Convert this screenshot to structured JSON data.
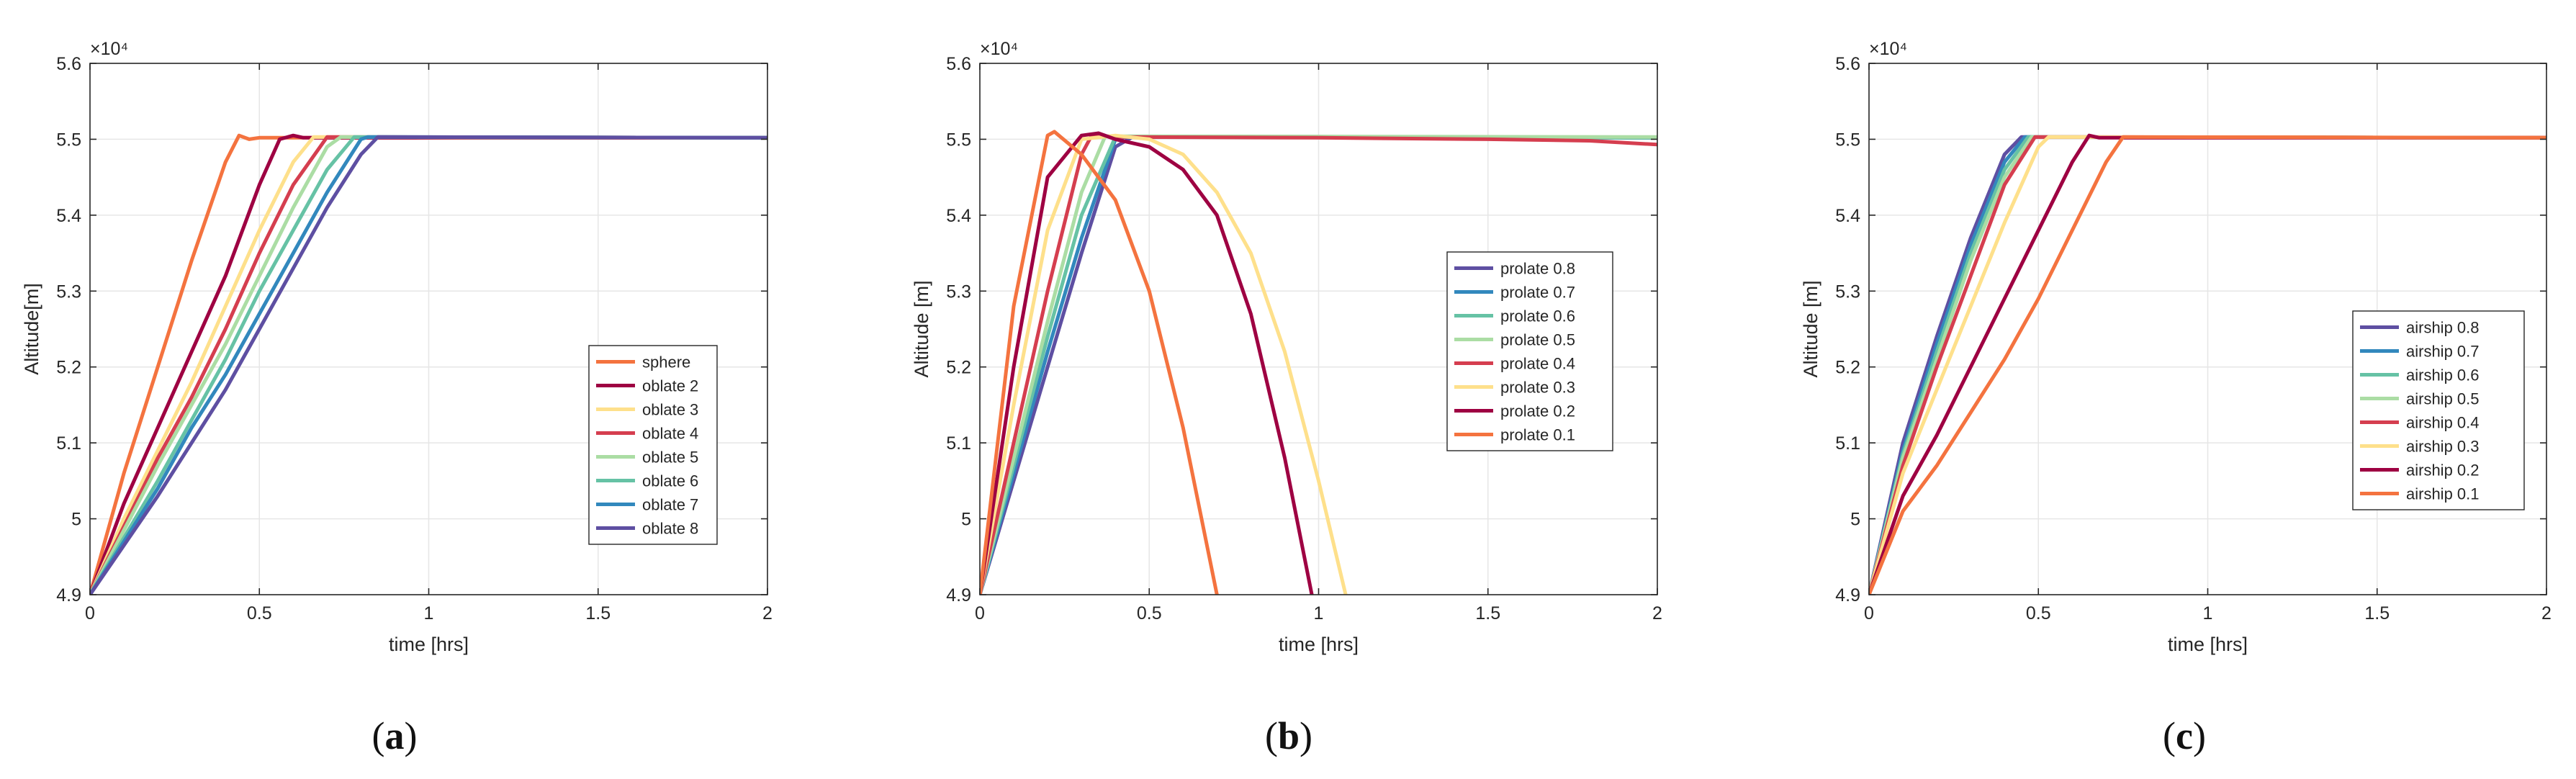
{
  "figure": {
    "panels": [
      {
        "letter": "a",
        "caption": "(a)"
      },
      {
        "letter": "b",
        "caption": "(b)"
      },
      {
        "letter": "c",
        "caption": "(c)"
      }
    ]
  },
  "chart_data": [
    {
      "type": "line",
      "panel": "(a)",
      "xlabel": "time [hrs]",
      "ylabel": "Altitude[m]",
      "xlim": [
        0,
        2
      ],
      "ylim": [
        4.9,
        5.6
      ],
      "xticks": [
        "0",
        "0.5",
        "1",
        "1.5",
        "2"
      ],
      "yticks": [
        "4.9",
        "5",
        "5.1",
        "5.2",
        "5.3",
        "5.4",
        "5.5",
        "5.6"
      ],
      "exponent_label": "×10⁴",
      "grid": true,
      "legend_position": "bottom-right",
      "series": [
        {
          "name": "sphere",
          "color": "#f4733f",
          "x": [
            0,
            0.1,
            0.2,
            0.3,
            0.4,
            0.44,
            0.47,
            0.5,
            2
          ],
          "y": [
            4.9,
            5.06,
            5.2,
            5.34,
            5.47,
            5.505,
            5.5,
            5.502,
            5.502
          ]
        },
        {
          "name": "oblate 2",
          "color": "#9e0142",
          "x": [
            0,
            0.1,
            0.2,
            0.3,
            0.4,
            0.5,
            0.56,
            0.6,
            0.63,
            2
          ],
          "y": [
            4.9,
            5.02,
            5.12,
            5.22,
            5.32,
            5.44,
            5.5,
            5.505,
            5.502,
            5.502
          ]
        },
        {
          "name": "oblate 3",
          "color": "#fee08b",
          "x": [
            0,
            0.1,
            0.2,
            0.3,
            0.4,
            0.5,
            0.6,
            0.66,
            2
          ],
          "y": [
            4.9,
            5.0,
            5.09,
            5.18,
            5.28,
            5.38,
            5.47,
            5.503,
            5.502
          ]
        },
        {
          "name": "oblate 4",
          "color": "#d53e4f",
          "x": [
            0,
            0.1,
            0.2,
            0.3,
            0.4,
            0.5,
            0.6,
            0.7,
            2
          ],
          "y": [
            4.9,
            4.99,
            5.08,
            5.16,
            5.25,
            5.35,
            5.44,
            5.503,
            5.502
          ]
        },
        {
          "name": "oblate 5",
          "color": "#abdda4",
          "x": [
            0,
            0.1,
            0.2,
            0.3,
            0.4,
            0.5,
            0.6,
            0.7,
            0.74,
            2
          ],
          "y": [
            4.9,
            4.985,
            5.07,
            5.15,
            5.23,
            5.32,
            5.41,
            5.49,
            5.503,
            5.502
          ]
        },
        {
          "name": "oblate 6",
          "color": "#66c2a5",
          "x": [
            0,
            0.1,
            0.2,
            0.3,
            0.4,
            0.5,
            0.6,
            0.7,
            0.78,
            2
          ],
          "y": [
            4.9,
            4.975,
            5.05,
            5.13,
            5.21,
            5.3,
            5.38,
            5.46,
            5.503,
            5.502
          ]
        },
        {
          "name": "oblate 7",
          "color": "#3288bd",
          "x": [
            0,
            0.1,
            0.2,
            0.3,
            0.4,
            0.5,
            0.6,
            0.7,
            0.8,
            0.82,
            2
          ],
          "y": [
            4.9,
            4.97,
            5.04,
            5.12,
            5.19,
            5.27,
            5.35,
            5.43,
            5.5,
            5.503,
            5.502
          ]
        },
        {
          "name": "oblate 8",
          "color": "#5e4fa2",
          "x": [
            0,
            0.1,
            0.2,
            0.3,
            0.4,
            0.5,
            0.6,
            0.7,
            0.8,
            0.85,
            2
          ],
          "y": [
            4.9,
            4.965,
            5.03,
            5.1,
            5.17,
            5.25,
            5.33,
            5.41,
            5.48,
            5.503,
            5.502
          ]
        }
      ]
    },
    {
      "type": "line",
      "panel": "(b)",
      "xlabel": "time [hrs]",
      "ylabel": "Altitude [m]",
      "xlim": [
        0,
        2
      ],
      "ylim": [
        4.9,
        5.6
      ],
      "xticks": [
        "0",
        "0.5",
        "1",
        "1.5",
        "2"
      ],
      "yticks": [
        "4.9",
        "5",
        "5.1",
        "5.2",
        "5.3",
        "5.4",
        "5.5",
        "5.6"
      ],
      "exponent_label": "×10⁴",
      "grid": true,
      "legend_position": "right",
      "series": [
        {
          "name": "prolate 0.8",
          "color": "#5e4fa2",
          "x": [
            0,
            0.1,
            0.2,
            0.3,
            0.4,
            0.45,
            2
          ],
          "y": [
            4.9,
            5.05,
            5.2,
            5.35,
            5.49,
            5.503,
            5.502
          ]
        },
        {
          "name": "prolate 0.7",
          "color": "#3288bd",
          "x": [
            0,
            0.1,
            0.2,
            0.3,
            0.4,
            0.43,
            2
          ],
          "y": [
            4.9,
            5.06,
            5.22,
            5.37,
            5.5,
            5.503,
            5.502
          ]
        },
        {
          "name": "prolate 0.6",
          "color": "#66c2a5",
          "x": [
            0,
            0.1,
            0.2,
            0.3,
            0.4,
            2
          ],
          "y": [
            4.9,
            5.07,
            5.24,
            5.4,
            5.503,
            5.502
          ]
        },
        {
          "name": "prolate 0.5",
          "color": "#abdda4",
          "x": [
            0,
            0.1,
            0.2,
            0.3,
            0.37,
            2
          ],
          "y": [
            4.9,
            5.08,
            5.26,
            5.43,
            5.504,
            5.503
          ]
        },
        {
          "name": "prolate 0.4",
          "color": "#d53e4f",
          "x": [
            0,
            0.1,
            0.2,
            0.3,
            0.33,
            0.4,
            1.0,
            1.5,
            1.8,
            2.0
          ],
          "y": [
            4.9,
            5.1,
            5.3,
            5.48,
            5.505,
            5.503,
            5.502,
            5.5,
            5.498,
            5.493
          ]
        },
        {
          "name": "prolate 0.3",
          "color": "#fee08b",
          "x": [
            0,
            0.1,
            0.2,
            0.3,
            0.4,
            0.5,
            0.6,
            0.7,
            0.8,
            0.9,
            1.0,
            1.08
          ],
          "y": [
            4.9,
            5.15,
            5.38,
            5.5,
            5.505,
            5.5,
            5.48,
            5.43,
            5.35,
            5.22,
            5.05,
            4.9
          ]
        },
        {
          "name": "prolate 0.2",
          "color": "#9e0142",
          "x": [
            0,
            0.1,
            0.2,
            0.3,
            0.35,
            0.4,
            0.5,
            0.6,
            0.7,
            0.8,
            0.9,
            0.98
          ],
          "y": [
            4.9,
            5.2,
            5.45,
            5.505,
            5.508,
            5.5,
            5.49,
            5.46,
            5.4,
            5.27,
            5.08,
            4.9
          ]
        },
        {
          "name": "prolate 0.1",
          "color": "#f4733f",
          "x": [
            0,
            0.1,
            0.2,
            0.22,
            0.3,
            0.4,
            0.5,
            0.6,
            0.7
          ],
          "y": [
            4.9,
            5.28,
            5.505,
            5.51,
            5.48,
            5.42,
            5.3,
            5.12,
            4.9
          ]
        }
      ]
    },
    {
      "type": "line",
      "panel": "(c)",
      "xlabel": "time [hrs]",
      "ylabel": "Altitude [m]",
      "xlim": [
        0,
        2
      ],
      "ylim": [
        4.9,
        5.6
      ],
      "xticks": [
        "0",
        "0.5",
        "1",
        "1.5",
        "2"
      ],
      "yticks": [
        "4.9",
        "5",
        "5.1",
        "5.2",
        "5.3",
        "5.4",
        "5.5",
        "5.6"
      ],
      "exponent_label": "×10⁴",
      "grid": true,
      "legend_position": "bottom-right",
      "series": [
        {
          "name": "airship 0.8",
          "color": "#5e4fa2",
          "x": [
            0,
            0.1,
            0.2,
            0.3,
            0.4,
            0.45,
            2
          ],
          "y": [
            4.9,
            5.1,
            5.24,
            5.37,
            5.48,
            5.503,
            5.502
          ]
        },
        {
          "name": "airship 0.7",
          "color": "#3288bd",
          "x": [
            0,
            0.1,
            0.2,
            0.3,
            0.4,
            0.46,
            2
          ],
          "y": [
            4.9,
            5.09,
            5.23,
            5.36,
            5.47,
            5.503,
            5.502
          ]
        },
        {
          "name": "airship 0.6",
          "color": "#66c2a5",
          "x": [
            0,
            0.1,
            0.2,
            0.3,
            0.4,
            0.47,
            2
          ],
          "y": [
            4.9,
            5.085,
            5.22,
            5.35,
            5.46,
            5.503,
            5.502
          ]
        },
        {
          "name": "airship 0.5",
          "color": "#abdda4",
          "x": [
            0,
            0.1,
            0.2,
            0.3,
            0.4,
            0.48,
            2
          ],
          "y": [
            4.9,
            5.08,
            5.21,
            5.34,
            5.45,
            5.503,
            5.502
          ]
        },
        {
          "name": "airship 0.4",
          "color": "#d53e4f",
          "x": [
            0,
            0.1,
            0.2,
            0.3,
            0.4,
            0.49,
            2
          ],
          "y": [
            4.9,
            5.07,
            5.2,
            5.32,
            5.44,
            5.503,
            5.502
          ]
        },
        {
          "name": "airship 0.3",
          "color": "#fee08b",
          "x": [
            0,
            0.1,
            0.2,
            0.3,
            0.4,
            0.5,
            0.53,
            2
          ],
          "y": [
            4.9,
            5.06,
            5.17,
            5.28,
            5.39,
            5.49,
            5.503,
            5.502
          ]
        },
        {
          "name": "airship 0.2",
          "color": "#9e0142",
          "x": [
            0,
            0.1,
            0.2,
            0.3,
            0.4,
            0.5,
            0.6,
            0.65,
            0.68,
            2
          ],
          "y": [
            4.9,
            5.03,
            5.11,
            5.2,
            5.29,
            5.38,
            5.47,
            5.505,
            5.502,
            5.502
          ]
        },
        {
          "name": "airship 0.1",
          "color": "#f4733f",
          "x": [
            0,
            0.1,
            0.2,
            0.3,
            0.4,
            0.5,
            0.6,
            0.7,
            0.75,
            2
          ],
          "y": [
            4.9,
            5.01,
            5.07,
            5.14,
            5.21,
            5.29,
            5.38,
            5.47,
            5.503,
            5.502
          ]
        }
      ]
    }
  ]
}
